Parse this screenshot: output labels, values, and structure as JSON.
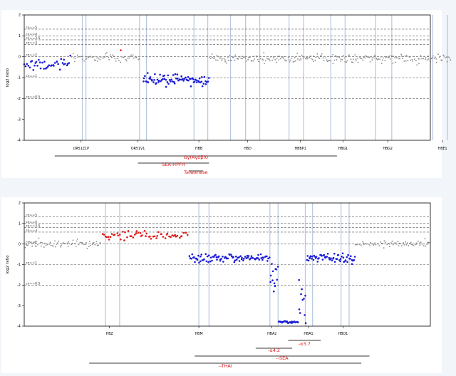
{
  "colors": {
    "gain": "#e01818",
    "loss": "#1a1ad8",
    "normal": "#8a8a8a",
    "gene_line": "#9db4d6",
    "deletion_label": "#e01818",
    "deletion_bar": "#7a7a7a"
  },
  "chart_data": [
    {
      "type": "scatter",
      "title": "",
      "xlabel": "",
      "ylabel": "log2 ratio",
      "ylim": [
        -4,
        2
      ],
      "yticks": [
        -4,
        -3,
        -2,
        -1,
        0,
        1,
        2
      ],
      "xlim": [
        0,
        100
      ],
      "grid": false,
      "cn_thresholds": [
        {
          "label": "cn==5",
          "value": 1.32
        },
        {
          "label": "cn==4",
          "value": 1.0
        },
        {
          "label": "cn==3.5",
          "value": 0.81
        },
        {
          "label": "cn==3",
          "value": 0.58
        },
        {
          "label": "cn==2",
          "value": 0.0
        },
        {
          "label": "cn==1",
          "value": -1.0
        },
        {
          "label": "cn==0.5",
          "value": -2.0
        }
      ],
      "genes": [
        {
          "name": "OR51Z1P",
          "x": 14.0
        },
        {
          "name": "OR51V1",
          "x": 28.0
        },
        {
          "name": "HBB",
          "x": 43.0
        },
        {
          "name": "HBD",
          "x": 55.0
        },
        {
          "name": "HBBP1",
          "x": 68.0
        },
        {
          "name": "HBG1",
          "x": 78.5
        },
        {
          "name": "HBG2",
          "x": 89.5
        },
        {
          "name": "HBE1",
          "x": 103.0
        }
      ],
      "gene_lines": [
        14.3,
        15.2,
        28.4,
        30.1,
        41.8,
        45.2,
        50.8,
        54.5,
        58.0,
        65.2,
        68.8,
        75.5,
        79.0,
        86.5,
        90.5,
        100.6,
        104.2
      ],
      "segments": [
        {
          "x0": 0.0,
          "x1": 11.5,
          "y": -0.35,
          "sd": 0.14,
          "n": 40,
          "status": "loss"
        },
        {
          "x0": 11.5,
          "x1": 28.5,
          "y": -0.05,
          "sd": 0.11,
          "n": 60,
          "status": "normal"
        },
        {
          "x0": 29.2,
          "x1": 45.5,
          "y": -1.1,
          "sd": 0.13,
          "n": 80,
          "status": "loss"
        },
        {
          "x0": 45.5,
          "x1": 105.0,
          "y": -0.08,
          "sd": 0.1,
          "n": 240,
          "status": "normal"
        }
      ],
      "deletions": [
        {
          "label": "Gγ(Aγδβ)0",
          "x0": 7.5,
          "x1": 77.0
        },
        {
          "label": "SEA-HPFH",
          "x0": 28.0,
          "x1": 45.5
        },
        {
          "label": "Taiwanese",
          "x0": 40.5,
          "x1": 44.0
        }
      ]
    },
    {
      "type": "scatter",
      "title": "",
      "xlabel": "",
      "ylabel": "log2 ratio",
      "ylim": [
        -4,
        2
      ],
      "yticks": [
        -4,
        -3,
        -2,
        -1,
        0,
        1,
        2
      ],
      "xlim": [
        0,
        100
      ],
      "grid": false,
      "cn_thresholds": [
        {
          "label": "cn==5",
          "value": 1.32
        },
        {
          "label": "cn==4",
          "value": 1.0
        },
        {
          "label": "cn==3.5",
          "value": 0.81
        },
        {
          "label": "cn==3",
          "value": 0.58
        },
        {
          "label": "cn==2",
          "value": 0.0
        },
        {
          "label": "cn==1",
          "value": -1.0
        },
        {
          "label": "cn==0.5",
          "value": -2.0
        }
      ],
      "genes": [
        {
          "name": "HBZ",
          "x": 21.0
        },
        {
          "name": "HBM",
          "x": 43.0
        },
        {
          "name": "HBA2",
          "x": 61.0
        },
        {
          "name": "HBA1",
          "x": 70.0
        },
        {
          "name": "HBQ1",
          "x": 78.5
        }
      ],
      "gene_lines": [
        20.0,
        23.5,
        43.0,
        45.5,
        60.5,
        62.5,
        69.2,
        71.0,
        78.0,
        80.0
      ],
      "segments": [
        {
          "x0": 0.0,
          "x1": 19.0,
          "y": 0.0,
          "sd": 0.09,
          "n": 70,
          "status": "normal"
        },
        {
          "x0": 19.0,
          "x1": 40.5,
          "y": 0.42,
          "sd": 0.14,
          "n": 60,
          "status": "gain"
        },
        {
          "x0": 40.5,
          "x1": 60.5,
          "y": -0.68,
          "sd": 0.1,
          "n": 90,
          "status": "loss"
        },
        {
          "x0": 60.5,
          "x1": 62.5,
          "y": -1.7,
          "sd": 0.45,
          "n": 12,
          "status": "loss"
        },
        {
          "x0": 62.5,
          "x1": 67.5,
          "y": -3.8,
          "sd": 0.02,
          "n": 26,
          "status": "loss"
        },
        {
          "x0": 67.5,
          "x1": 69.5,
          "y": -2.8,
          "sd": 0.5,
          "n": 10,
          "status": "loss"
        },
        {
          "x0": 69.5,
          "x1": 81.5,
          "y": -0.68,
          "sd": 0.12,
          "n": 60,
          "status": "loss"
        },
        {
          "x0": 81.5,
          "x1": 100.0,
          "y": 0.0,
          "sd": 0.08,
          "n": 70,
          "status": "normal"
        }
      ],
      "deletions": [
        {
          "label": "-α3.7",
          "x0": 65.0,
          "x1": 73.0
        },
        {
          "label": "-α4.2",
          "x0": 57.0,
          "x1": 66.0
        },
        {
          "label": "--SEA",
          "x0": 42.0,
          "x1": 85.0
        },
        {
          "label": "--THAI",
          "x0": 16.0,
          "x1": 83.0
        }
      ]
    }
  ]
}
